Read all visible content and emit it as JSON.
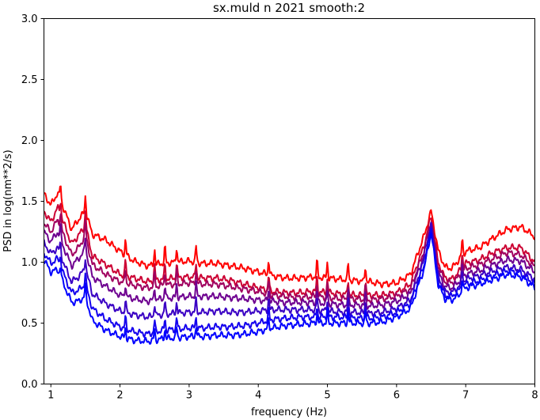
{
  "chart_data": {
    "type": "line",
    "title": "sx.muld n 2021 smooth:2",
    "xlabel": "frequency (Hz)",
    "ylabel": "PSD in log(nm**2/s)",
    "xlim": [
      0.9,
      8.0
    ],
    "ylim": [
      0.0,
      3.0
    ],
    "xticks": [
      1,
      2,
      3,
      4,
      5,
      6,
      7,
      8
    ],
    "xtick_labels": [
      "1",
      "2",
      "3",
      "4",
      "5",
      "6",
      "7",
      "8"
    ],
    "yticks": [
      0.0,
      0.5,
      1.0,
      1.5,
      2.0,
      2.5,
      3.0
    ],
    "ytick_labels": [
      "0.0",
      "0.5",
      "1.0",
      "1.5",
      "2.0",
      "2.5",
      "3.0"
    ],
    "grid": false,
    "legend": "none",
    "x": [
      0.9,
      1.0,
      1.1,
      1.2,
      1.3,
      1.4,
      1.5,
      1.6,
      1.8,
      2.0,
      2.2,
      2.4,
      2.6,
      2.8,
      3.0,
      3.2,
      3.4,
      3.6,
      3.8,
      4.0,
      4.2,
      4.4,
      4.6,
      4.8,
      5.0,
      5.2,
      5.4,
      5.6,
      5.8,
      6.0,
      6.2,
      6.4,
      6.5,
      6.6,
      6.7,
      6.8,
      6.9,
      7.0,
      7.2,
      7.4,
      7.6,
      7.8,
      8.0
    ],
    "spikes": [
      1.14,
      1.5,
      2.08,
      2.5,
      2.65,
      2.82,
      3.1,
      4.15,
      4.85,
      5.0,
      5.3,
      5.55,
      6.95
    ],
    "series": [
      {
        "color": "#ff0000",
        "values": [
          1.56,
          1.47,
          1.57,
          1.42,
          1.27,
          1.35,
          1.42,
          1.23,
          1.18,
          1.09,
          1.01,
          0.97,
          0.99,
          1.0,
          1.01,
          0.99,
          0.99,
          0.97,
          0.95,
          0.92,
          0.89,
          0.87,
          0.87,
          0.88,
          0.87,
          0.86,
          0.85,
          0.84,
          0.82,
          0.83,
          0.9,
          1.22,
          1.42,
          1.1,
          0.96,
          0.95,
          1.02,
          1.09,
          1.12,
          1.2,
          1.27,
          1.29,
          1.21
        ]
      },
      {
        "color": "#cc0033",
        "values": [
          1.42,
          1.33,
          1.45,
          1.3,
          1.15,
          1.22,
          1.3,
          1.05,
          0.98,
          0.9,
          0.87,
          0.84,
          0.86,
          0.87,
          0.88,
          0.87,
          0.87,
          0.85,
          0.82,
          0.79,
          0.76,
          0.75,
          0.75,
          0.76,
          0.75,
          0.74,
          0.73,
          0.73,
          0.73,
          0.75,
          0.82,
          1.14,
          1.38,
          1.0,
          0.87,
          0.86,
          0.92,
          0.99,
          1.02,
          1.08,
          1.12,
          1.12,
          1.0
        ]
      },
      {
        "color": "#a0005f",
        "values": [
          1.32,
          1.25,
          1.35,
          1.2,
          1.06,
          1.12,
          1.22,
          0.98,
          0.9,
          0.84,
          0.81,
          0.79,
          0.81,
          0.82,
          0.83,
          0.82,
          0.82,
          0.8,
          0.78,
          0.76,
          0.73,
          0.72,
          0.71,
          0.72,
          0.71,
          0.7,
          0.7,
          0.69,
          0.7,
          0.72,
          0.78,
          1.1,
          1.35,
          0.97,
          0.84,
          0.83,
          0.88,
          0.95,
          0.98,
          1.03,
          1.08,
          1.06,
          0.96
        ]
      },
      {
        "color": "#6e0090",
        "values": [
          1.25,
          1.17,
          1.25,
          1.1,
          0.97,
          1.03,
          1.1,
          0.88,
          0.8,
          0.73,
          0.7,
          0.68,
          0.7,
          0.71,
          0.72,
          0.72,
          0.72,
          0.71,
          0.7,
          0.69,
          0.68,
          0.67,
          0.67,
          0.67,
          0.66,
          0.65,
          0.65,
          0.64,
          0.65,
          0.68,
          0.74,
          1.06,
          1.32,
          0.92,
          0.8,
          0.79,
          0.84,
          0.9,
          0.93,
          0.98,
          1.02,
          1.01,
          0.92
        ]
      },
      {
        "color": "#3a00c4",
        "values": [
          1.16,
          1.07,
          1.12,
          0.97,
          0.84,
          0.88,
          0.95,
          0.74,
          0.66,
          0.6,
          0.57,
          0.55,
          0.57,
          0.58,
          0.59,
          0.59,
          0.6,
          0.59,
          0.59,
          0.6,
          0.61,
          0.61,
          0.61,
          0.61,
          0.6,
          0.59,
          0.59,
          0.58,
          0.59,
          0.62,
          0.69,
          1.02,
          1.3,
          0.88,
          0.76,
          0.75,
          0.8,
          0.86,
          0.89,
          0.93,
          0.96,
          0.94,
          0.86
        ]
      },
      {
        "color": "#1400ee",
        "values": [
          1.08,
          0.99,
          1.03,
          0.88,
          0.75,
          0.77,
          0.82,
          0.62,
          0.53,
          0.47,
          0.43,
          0.41,
          0.44,
          0.45,
          0.46,
          0.46,
          0.47,
          0.47,
          0.48,
          0.5,
          0.53,
          0.54,
          0.55,
          0.55,
          0.55,
          0.55,
          0.54,
          0.54,
          0.55,
          0.59,
          0.66,
          0.98,
          1.28,
          0.85,
          0.73,
          0.72,
          0.77,
          0.82,
          0.85,
          0.89,
          0.93,
          0.91,
          0.82
        ]
      },
      {
        "color": "#0000ff",
        "values": [
          1.02,
          0.92,
          0.94,
          0.8,
          0.67,
          0.68,
          0.72,
          0.52,
          0.44,
          0.39,
          0.36,
          0.35,
          0.37,
          0.38,
          0.39,
          0.39,
          0.4,
          0.4,
          0.41,
          0.43,
          0.46,
          0.48,
          0.49,
          0.5,
          0.5,
          0.5,
          0.5,
          0.5,
          0.51,
          0.55,
          0.62,
          0.95,
          1.25,
          0.82,
          0.7,
          0.69,
          0.73,
          0.79,
          0.82,
          0.86,
          0.9,
          0.88,
          0.79
        ]
      }
    ]
  }
}
